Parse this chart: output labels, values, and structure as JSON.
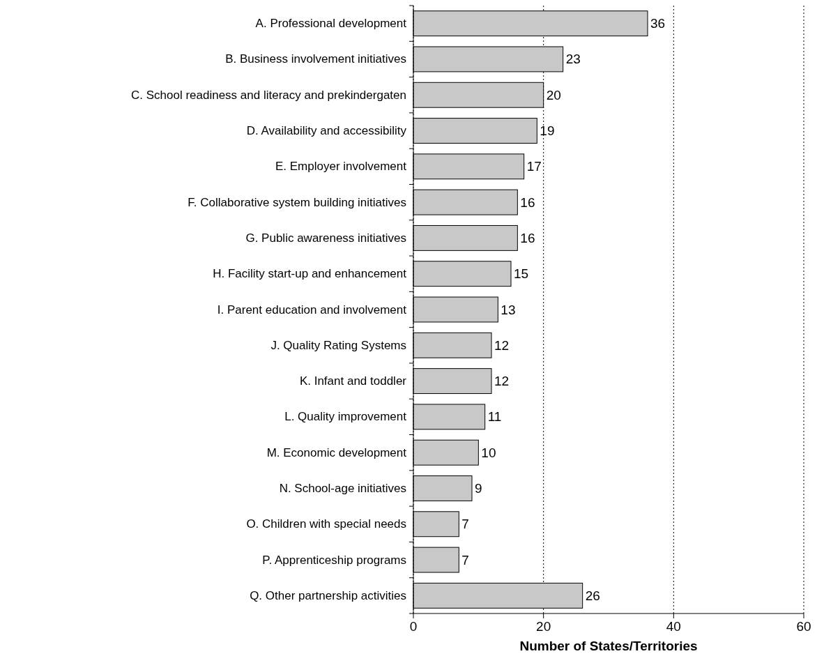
{
  "chart_data": {
    "type": "bar",
    "orientation": "horizontal",
    "xlabel": "Number of States/Territories",
    "categories": [
      "A. Professional development",
      "B. Business involvement initiatives",
      "C. School readiness and literacy and prekindergaten",
      "D. Availability and accessibility",
      "E. Employer involvement",
      "F. Collaborative system building initiatives",
      "G. Public awareness initiatives",
      "H. Facility start-up and enhancement",
      "I. Parent education and involvement",
      "J. Quality Rating Systems",
      "K. Infant and toddler",
      "L. Quality improvement",
      "M. Economic development",
      "N. School-age initiatives",
      "O. Children with special needs",
      "P. Apprenticeship programs",
      "Q. Other partnership activities"
    ],
    "values": [
      36,
      23,
      20,
      19,
      17,
      16,
      16,
      15,
      13,
      12,
      12,
      11,
      10,
      9,
      7,
      7,
      26
    ],
    "color": "#c8c8c8",
    "xlim": [
      0,
      60
    ],
    "xticks": [
      0,
      20,
      40,
      60
    ],
    "grid": "x",
    "line_style": "dotted",
    "data_labels": true
  }
}
